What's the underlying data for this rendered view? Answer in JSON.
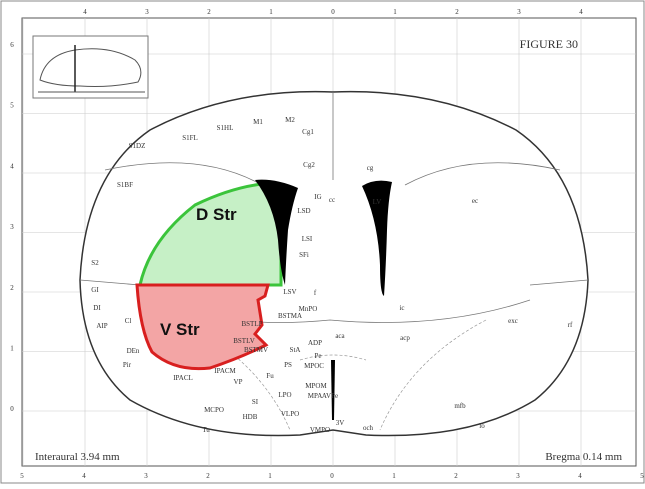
{
  "figure_title": "FIGURE 30",
  "interaural": "Interaural 3.94 mm",
  "bregma": "Bregma 0.14 mm",
  "regions": {
    "dorsal": "D Str",
    "ventral": "V Str"
  },
  "top_ticks": [
    4,
    3,
    2,
    1,
    0,
    1,
    2,
    3,
    4
  ],
  "left_ticks": [
    6,
    5,
    4,
    3,
    2,
    1,
    0
  ],
  "bottom_ticks": [
    5,
    4,
    3,
    2,
    1,
    0,
    1,
    2,
    3,
    4,
    5
  ],
  "structures": [
    "M1",
    "M2",
    "S1HL",
    "S1FL",
    "S1DZ",
    "S1BF",
    "S2",
    "GI",
    "DI",
    "AIP",
    "Cl",
    "DEn",
    "Pir",
    "Cg1",
    "Cg2",
    "IG",
    "cc",
    "LSD",
    "LSI",
    "SFi",
    "LSV",
    "LV",
    "cg",
    "ec",
    "BSTMA",
    "MnPO",
    "BSTLP",
    "BSTLV",
    "BSTMV",
    "StA",
    "ADP",
    "aca",
    "acp",
    "Pe",
    "MPOC",
    "IPACM",
    "IPACL",
    "VP",
    "Fu",
    "PS",
    "SI",
    "LPO",
    "MPOM",
    "MPA",
    "AVPe",
    "MCPO",
    "HDB",
    "VLPO",
    "Tu",
    "VMPO",
    "3V",
    "och",
    "mfb",
    "lo",
    "exc",
    "rf",
    "f",
    "ic"
  ]
}
